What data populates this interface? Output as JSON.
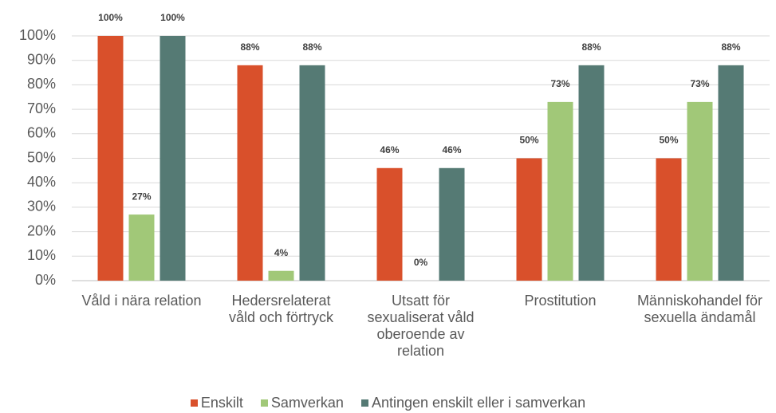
{
  "chart_data": {
    "type": "bar",
    "categories": [
      "Våld i nära relation",
      "Hedersrelaterat våld och förtryck",
      "Utsatt för sexualiserat våld oberoende av relation",
      "Prostitution",
      "Människohandel för sexuella ändamål"
    ],
    "series": [
      {
        "name": "Enskilt",
        "color": "#d9502b",
        "values": [
          100,
          88,
          46,
          50,
          50
        ],
        "value_labels": [
          "100%",
          "88%",
          "46%",
          "50%",
          "50%"
        ]
      },
      {
        "name": "Samverkan",
        "color": "#a1c878",
        "values": [
          27,
          4,
          0,
          73,
          73
        ],
        "value_labels": [
          "27%",
          "4%",
          "0%",
          "73%",
          "73%"
        ]
      },
      {
        "name": "Antingen enskilt eller i samverkan",
        "color": "#557a74",
        "values": [
          100,
          88,
          46,
          88,
          88
        ],
        "value_labels": [
          "100%",
          "88%",
          "46%",
          "88%",
          "88%"
        ]
      }
    ],
    "ylim": [
      0,
      100
    ],
    "yticks": [
      {
        "value": 0,
        "label": "0%"
      },
      {
        "value": 10,
        "label": "10%"
      },
      {
        "value": 20,
        "label": "20%"
      },
      {
        "value": 30,
        "label": "30%"
      },
      {
        "value": 40,
        "label": "40%"
      },
      {
        "value": 50,
        "label": "50%"
      },
      {
        "value": 60,
        "label": "60%"
      },
      {
        "value": 70,
        "label": "70%"
      },
      {
        "value": 80,
        "label": "80%"
      },
      {
        "value": 90,
        "label": "90%"
      },
      {
        "value": 100,
        "label": "100%"
      }
    ],
    "grid": true,
    "legend": "bottom"
  }
}
